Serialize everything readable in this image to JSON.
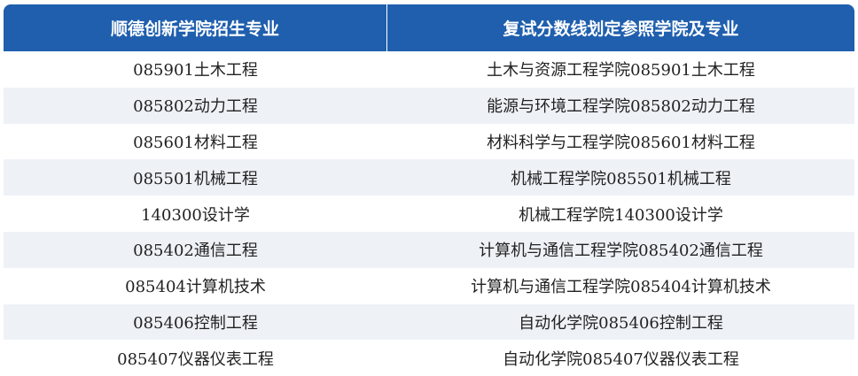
{
  "table": {
    "header": [
      "顺德创新学院招生专业",
      "复试分数线划定参照学院及专业"
    ],
    "rows": [
      [
        "085901土木工程",
        "土木与资源工程学院085901土木工程"
      ],
      [
        "085802动力工程",
        "能源与环境工程学院085802动力工程"
      ],
      [
        "085601材料工程",
        "材料科学与工程学院085601材料工程"
      ],
      [
        "085501机械工程",
        "机械工程学院085501机械工程"
      ],
      [
        "140300设计学",
        "机械工程学院140300设计学"
      ],
      [
        "085402通信工程",
        "计算机与通信工程学院085402通信工程"
      ],
      [
        "085404计算机技术",
        "计算机与通信工程学院085404计算机技术"
      ],
      [
        "085406控制工程",
        "自动化学院085406控制工程"
      ],
      [
        "085407仪器仪表工程",
        "自动化学院085407仪器仪表工程"
      ]
    ]
  }
}
